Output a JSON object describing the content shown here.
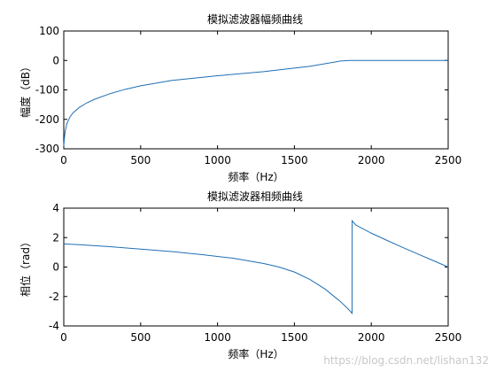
{
  "colors": {
    "line": "#1f6fb4",
    "watermark": "#c8c8c8"
  },
  "watermark": "https://blog.csdn.net/lishan132",
  "chart_data": [
    {
      "type": "line",
      "title": "模拟滤波器幅频曲线",
      "xlabel": "频率（Hz）",
      "ylabel": "幅度（dB）",
      "xlim": [
        0,
        2500
      ],
      "ylim": [
        -300,
        100
      ],
      "xticks": [
        0,
        500,
        1000,
        1500,
        2000,
        2500
      ],
      "yticks": [
        -300,
        -200,
        -100,
        0,
        100
      ],
      "grid": false,
      "series": [
        {
          "x": [
            0,
            5,
            10,
            20,
            40,
            60,
            100,
            150,
            200,
            300,
            400,
            500,
            700,
            1000,
            1300,
            1600,
            1800,
            1860,
            1900,
            2000,
            2200,
            2400,
            2500
          ],
          "y": [
            -290,
            -258,
            -238,
            -215,
            -192,
            -178,
            -160,
            -144,
            -132,
            -113,
            -98,
            -86,
            -68,
            -52,
            -38,
            -20,
            -2,
            0,
            0,
            0,
            0,
            0,
            0
          ]
        }
      ]
    },
    {
      "type": "line",
      "title": "模拟滤波器相频曲线",
      "xlabel": "频率（Hz）",
      "ylabel": "相位（rad）",
      "xlim": [
        0,
        2500
      ],
      "ylim": [
        -4,
        4
      ],
      "xticks": [
        0,
        500,
        1000,
        1500,
        2000,
        2500
      ],
      "yticks": [
        -4,
        -2,
        0,
        2,
        4
      ],
      "grid": false,
      "series": [
        {
          "x": [
            0,
            100,
            300,
            500,
            700,
            900,
            1100,
            1300,
            1400,
            1500,
            1600,
            1700,
            1800,
            1850,
            1875,
            1875.5,
            1900,
            2000,
            2100,
            2200,
            2300,
            2400,
            2500
          ],
          "y": [
            1.57,
            1.52,
            1.38,
            1.22,
            1.05,
            0.84,
            0.6,
            0.24,
            0.0,
            -0.34,
            -0.84,
            -1.5,
            -2.35,
            -2.85,
            -3.14,
            3.14,
            2.85,
            2.3,
            1.82,
            1.35,
            0.9,
            0.45,
            0.0
          ]
        }
      ]
    }
  ]
}
